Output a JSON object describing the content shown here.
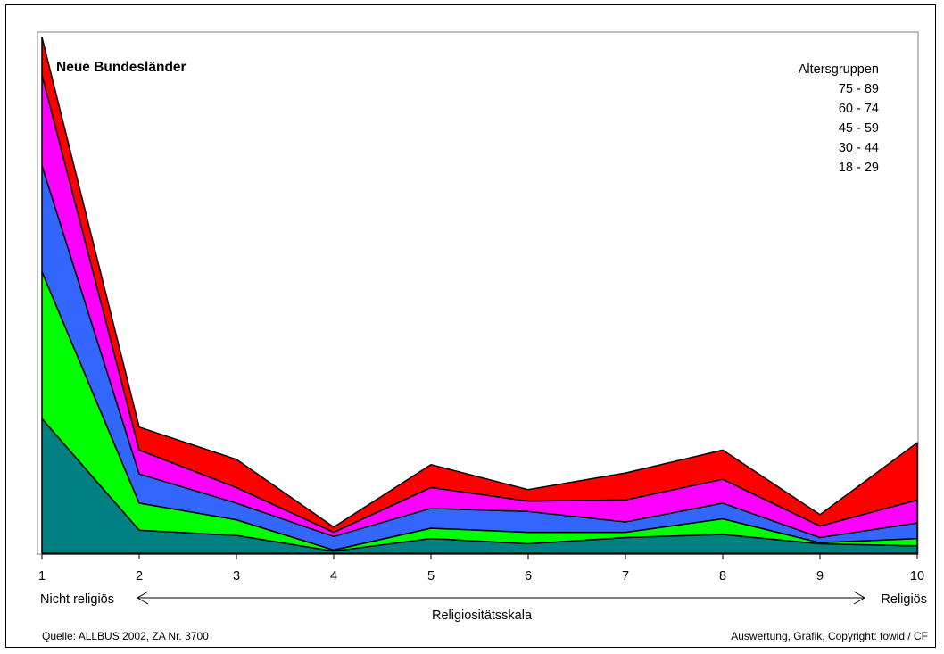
{
  "chart_data": {
    "type": "area",
    "stacked": true,
    "title": "Neue Bundesländer",
    "xlabel": "Religiositätsskala",
    "x_left_label": "Nicht religiös",
    "x_right_label": "Religiös",
    "legend_title": "Altersgruppen",
    "legend_position": "top-right",
    "grid": false,
    "categories": [
      "1",
      "2",
      "3",
      "4",
      "5",
      "6",
      "7",
      "8",
      "9",
      "10"
    ],
    "ylim": [
      0,
      50
    ],
    "series": [
      {
        "name": "18 - 29",
        "color": "#008080",
        "values": [
          12.9,
          2.2,
          1.7,
          0.2,
          1.4,
          0.9,
          1.5,
          1.8,
          0.9,
          0.7
        ]
      },
      {
        "name": "30 - 44",
        "color": "#00ff00",
        "values": [
          14.1,
          2.6,
          1.5,
          0.1,
          1.0,
          1.1,
          0.5,
          1.5,
          0.1,
          0.7
        ]
      },
      {
        "name": "45 - 59",
        "color": "#3366ff",
        "values": [
          10.2,
          2.8,
          1.6,
          1.3,
          1.9,
          2.0,
          1.0,
          1.5,
          0.5,
          1.5
        ]
      },
      {
        "name": "60 - 74",
        "color": "#ff00ff",
        "values": [
          8.7,
          2.3,
          1.5,
          0.4,
          2.0,
          1.0,
          2.1,
          2.3,
          1.1,
          2.2
        ]
      },
      {
        "name": "75 - 89",
        "color": "#ff0000",
        "values": [
          3.6,
          2.2,
          2.7,
          0.5,
          2.2,
          1.1,
          2.6,
          2.8,
          1.1,
          5.5
        ]
      }
    ]
  },
  "footer": {
    "source": "Quelle: ALLBUS 2002, ZA  Nr. 3700",
    "copyright": "Auswertung, Grafik, Copyright: fowid / CF"
  }
}
